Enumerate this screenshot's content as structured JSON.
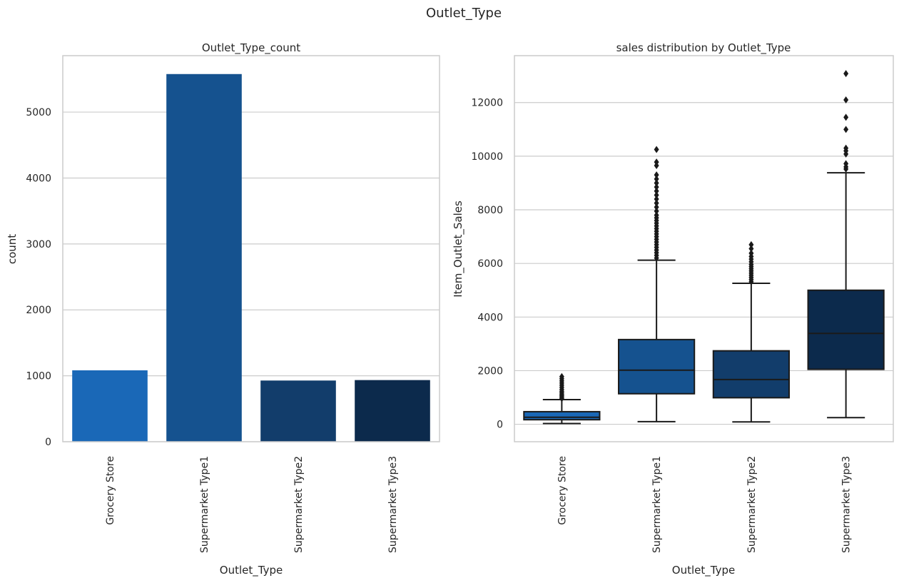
{
  "suptitle": "Outlet_Type",
  "chart_data": [
    {
      "type": "bar",
      "title": "Outlet_Type_count",
      "xlabel": "Outlet_Type",
      "ylabel": "count",
      "categories": [
        "Grocery Store",
        "Supermarket Type1",
        "Supermarket Type2",
        "Supermarket Type3"
      ],
      "values": [
        1083,
        5577,
        928,
        935
      ],
      "colors": [
        "#1a68b7",
        "#15528f",
        "#123d6b",
        "#0c2a4c"
      ],
      "ylim": [
        0,
        5856
      ],
      "yticks": [
        "0",
        "1000",
        "2000",
        "3000",
        "4000",
        "5000"
      ],
      "grid": "y"
    },
    {
      "type": "box",
      "title": "sales distribution by Outlet_Type",
      "xlabel": "Outlet_Type",
      "ylabel": "Item_Outlet_Sales",
      "categories": [
        "Grocery Store",
        "Supermarket Type1",
        "Supermarket Type2",
        "Supermarket Type3"
      ],
      "colors": [
        "#1a68b7",
        "#15528f",
        "#123d6b",
        "#0c2a4c"
      ],
      "ylim": [
        -650,
        13750
      ],
      "yticks": [
        "0",
        "2000",
        "4000",
        "6000",
        "8000",
        "10000",
        "12000"
      ],
      "grid": "y",
      "boxes": [
        {
          "whislo": 30,
          "q1": 170,
          "med": 260,
          "q3": 470,
          "whishi": 920,
          "fliers": [
            960,
            1010,
            1060,
            1110,
            1170,
            1230,
            1300,
            1380,
            1460,
            1540,
            1620,
            1700,
            1780
          ]
        },
        {
          "whislo": 100,
          "q1": 1140,
          "med": 2020,
          "q3": 3160,
          "whishi": 6120,
          "fliers": [
            6200,
            6300,
            6400,
            6500,
            6600,
            6700,
            6800,
            6900,
            7000,
            7100,
            7200,
            7300,
            7400,
            7500,
            7600,
            7700,
            7800,
            7950,
            8100,
            8250,
            8400,
            8550,
            8700,
            8850,
            9000,
            9150,
            9300,
            9650,
            9780,
            10250
          ]
        },
        {
          "whislo": 90,
          "q1": 990,
          "med": 1670,
          "q3": 2740,
          "whishi": 5260,
          "fliers": [
            5320,
            5400,
            5480,
            5560,
            5640,
            5720,
            5800,
            5880,
            5960,
            6060,
            6160,
            6260,
            6380,
            6550,
            6700
          ]
        },
        {
          "whislo": 250,
          "q1": 2050,
          "med": 3390,
          "q3": 5000,
          "whishi": 9380,
          "fliers": [
            9520,
            9600,
            9720,
            10080,
            10200,
            10300,
            11000,
            11450,
            12100,
            13080
          ]
        }
      ]
    }
  ]
}
